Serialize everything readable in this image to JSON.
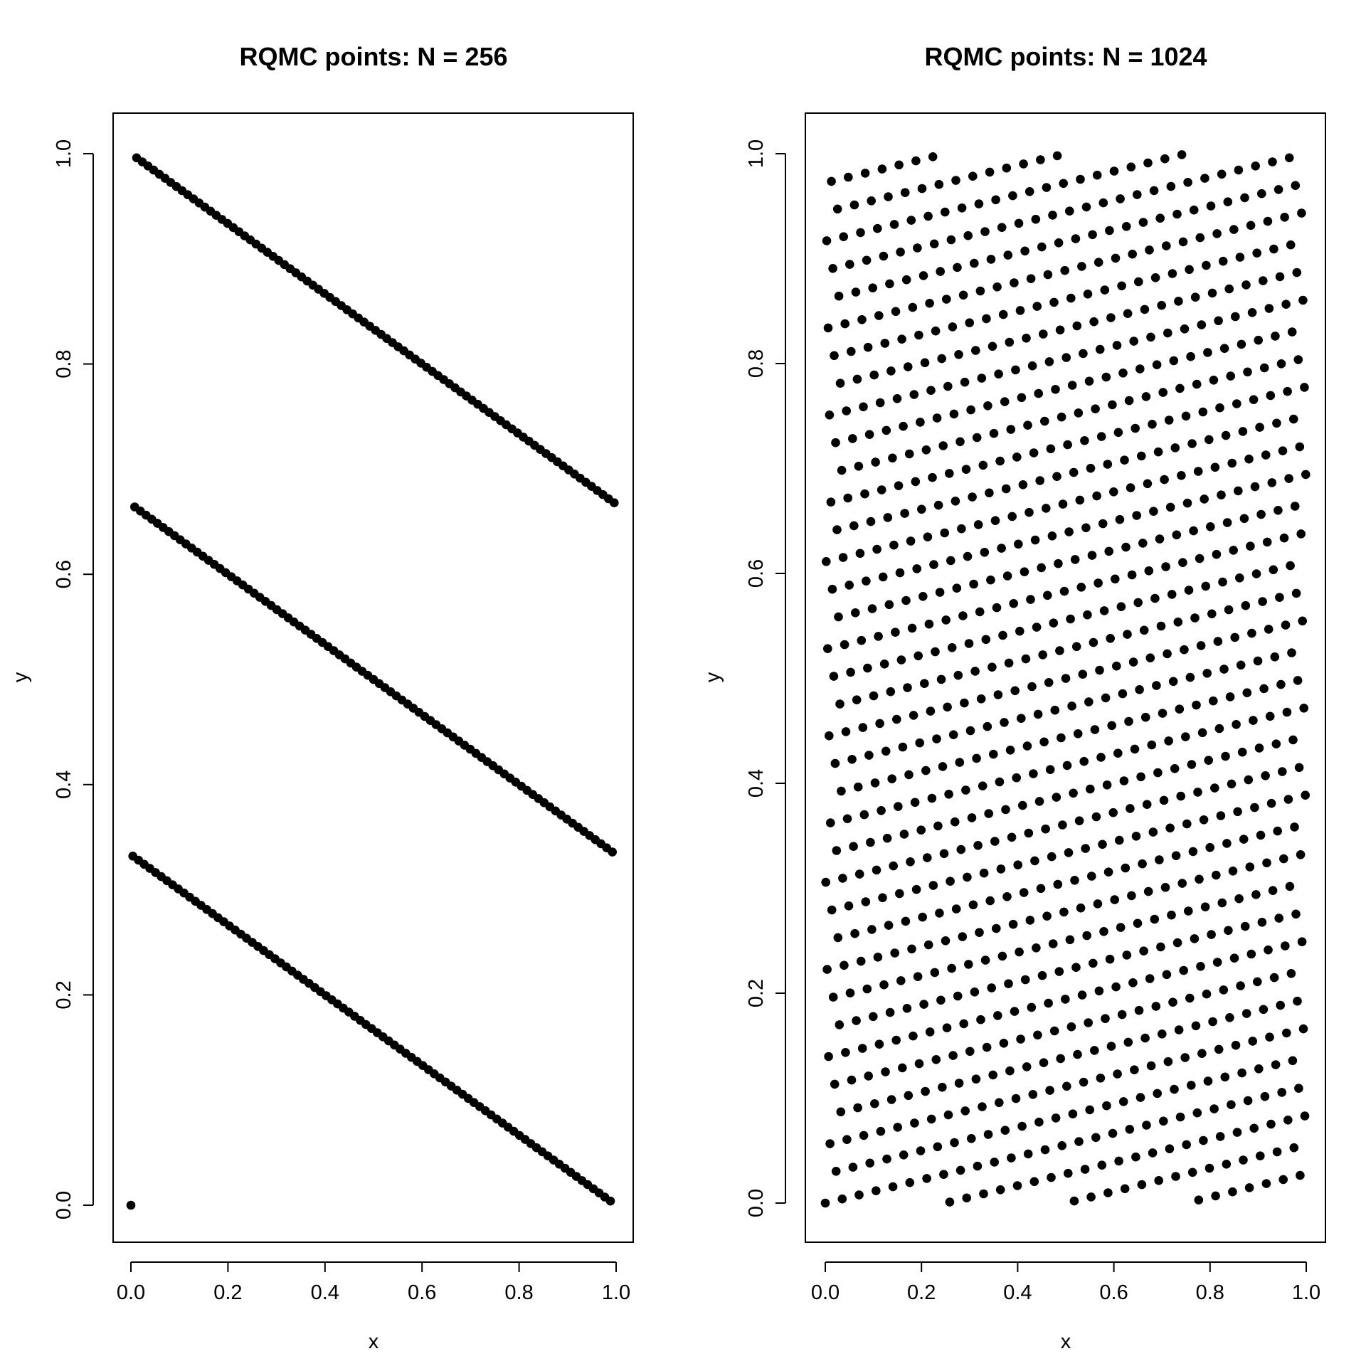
{
  "chart_data": [
    {
      "type": "scatter",
      "title": "RQMC points: N = 256",
      "xlabel": "x",
      "ylabel": "y",
      "xlim": [
        0,
        1
      ],
      "ylim": [
        0,
        1
      ],
      "xticks": [
        "0.0",
        "0.2",
        "0.4",
        "0.6",
        "0.8",
        "1.0"
      ],
      "yticks": [
        "0.0",
        "0.2",
        "0.4",
        "0.6",
        "0.8",
        "1.0"
      ],
      "grid": false,
      "n": 256,
      "point_generator": "rank-1 lattice, generating vector (1, 85), random shift (0.0, 0.0)",
      "marker_color": "#000000"
    },
    {
      "type": "scatter",
      "title": "RQMC points: N = 1024",
      "xlabel": "x",
      "ylabel": "y",
      "xlim": [
        0,
        1
      ],
      "ylim": [
        0,
        1
      ],
      "xticks": [
        "0.0",
        "0.2",
        "0.4",
        "0.6",
        "0.8",
        "1.0"
      ],
      "yticks": [
        "0.0",
        "0.2",
        "0.4",
        "0.6",
        "0.8",
        "1.0"
      ],
      "grid": false,
      "n": 1024,
      "point_generator": "rank-1 lattice, generating vector (1, 313), random shift (0.0, 0.0)",
      "marker_color": "#000000"
    }
  ]
}
